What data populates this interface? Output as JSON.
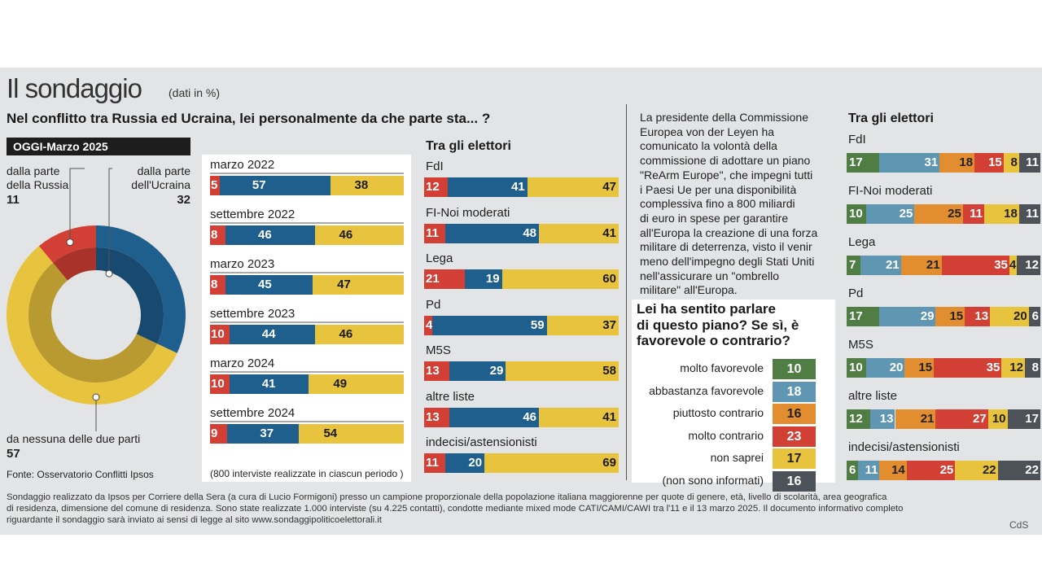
{
  "title": "Il sondaggio",
  "unit_note": "(dati in %)",
  "question": "Nel conflitto tra Russia ed Ucraina, lei personalmente  da che parte sta... ?",
  "today_label": "OGGI-Marzo 2025",
  "source": "Fonte: Osservatorio Conflitti Ipsos",
  "interviews_note": "(800 interviste realizzate in ciascun periodo )",
  "colors": {
    "russia": "#d13f35",
    "ukraine": "#1f5f8e",
    "neither": "#e8c33e",
    "green": "#4f7d44",
    "lightblue": "#5f97b3",
    "orange": "#e28d2f",
    "red": "#d13f35",
    "yellow": "#e8c33e",
    "gray": "#4c5258"
  },
  "donut": {
    "russia": {
      "label1": "dalla parte",
      "label2": "della Russia",
      "value": "11"
    },
    "ukraine": {
      "label1": "dalla parte",
      "label2": "dell'Ucraina",
      "value": "32"
    },
    "neither": {
      "label": "da nessuna delle due parti",
      "value": "57"
    }
  },
  "chart_data": [
    {
      "type": "pie",
      "title": "OGGI-Marzo 2025",
      "categories": [
        "dalla parte della Russia",
        "dalla parte dell'Ucraina",
        "da nessuna delle due parti"
      ],
      "values": [
        11,
        32,
        57
      ]
    },
    {
      "type": "bar",
      "stacked": true,
      "categories": [
        "marzo 2022",
        "settembre 2022",
        "marzo 2023",
        "settembre 2023",
        "marzo 2024",
        "settembre 2024"
      ],
      "series": [
        {
          "values": [
            5,
            8,
            8,
            10,
            10,
            9
          ]
        },
        {
          "values": [
            57,
            46,
            45,
            44,
            41,
            37
          ]
        },
        {
          "values": [
            38,
            46,
            47,
            46,
            49,
            54
          ]
        }
      ]
    },
    {
      "type": "bar",
      "stacked": true,
      "title": "Tra gli elettori",
      "categories": [
        "FdI",
        "FI-Noi moderati",
        "Lega",
        "Pd",
        "M5S",
        "altre liste",
        "indecisi/astensionisti"
      ],
      "series": [
        {
          "values": [
            12,
            11,
            21,
            4,
            13,
            13,
            11
          ]
        },
        {
          "values": [
            41,
            48,
            19,
            59,
            29,
            46,
            20
          ]
        },
        {
          "values": [
            47,
            41,
            60,
            37,
            58,
            41,
            69
          ]
        }
      ]
    },
    {
      "type": "bar",
      "title": "Lei ha sentito parlare di questo piano? Se sì, è favorevole o contrario?",
      "categories": [
        "molto favorevole",
        "abbastanza favorevole",
        "piuttosto contrario",
        "molto contrario",
        "non saprei",
        "(non sono informati)"
      ],
      "values": [
        10,
        18,
        16,
        23,
        17,
        16
      ]
    },
    {
      "type": "bar",
      "stacked": true,
      "title": "Tra gli elettori",
      "categories": [
        "FdI",
        "FI-Noi moderati",
        "Lega",
        "Pd",
        "M5S",
        "altre liste",
        "indecisi/astensionisti"
      ],
      "series": [
        {
          "values": [
            17,
            10,
            7,
            17,
            10,
            12,
            6
          ]
        },
        {
          "values": [
            31,
            25,
            21,
            29,
            20,
            13,
            11
          ]
        },
        {
          "values": [
            18,
            25,
            21,
            15,
            15,
            21,
            14
          ]
        },
        {
          "values": [
            15,
            11,
            35,
            13,
            35,
            27,
            25
          ]
        },
        {
          "values": [
            8,
            18,
            4,
            20,
            12,
            10,
            22
          ]
        },
        {
          "values": [
            11,
            11,
            12,
            6,
            8,
            17,
            22
          ]
        }
      ]
    }
  ],
  "trend": {
    "periods": [
      {
        "label": "marzo 2022",
        "r": "5",
        "u": "57",
        "n": "38"
      },
      {
        "label": "settembre 2022",
        "r": "8",
        "u": "46",
        "n": "46"
      },
      {
        "label": "marzo 2023",
        "r": "8",
        "u": "45",
        "n": "47"
      },
      {
        "label": "settembre 2023",
        "r": "10",
        "u": "44",
        "n": "46"
      },
      {
        "label": "marzo 2024",
        "r": "10",
        "u": "41",
        "n": "49"
      },
      {
        "label": "settembre 2024",
        "r": "9",
        "u": "37",
        "n": "54"
      }
    ]
  },
  "voters1": {
    "header": "Tra gli elettori",
    "rows": [
      {
        "label": "FdI",
        "r": "12",
        "u": "41",
        "n": "47"
      },
      {
        "label": "FI-Noi moderati",
        "r": "11",
        "u": "48",
        "n": "41"
      },
      {
        "label": "Lega",
        "r": "21",
        "u": "19",
        "n": "60"
      },
      {
        "label": "Pd",
        "r": "4",
        "u": "59",
        "n": "37"
      },
      {
        "label": "M5S",
        "r": "13",
        "u": "29",
        "n": "58"
      },
      {
        "label": "altre liste",
        "r": "13",
        "u": "46",
        "n": "41"
      },
      {
        "label": "indecisi/astensionisti",
        "r": "11",
        "u": "20",
        "n": "69"
      }
    ]
  },
  "rearm_text": "La presidente della Commissione Europea von der Leyen ha comunicato la volontà della commissione di adottare un piano \"ReArm Europe\", che impegni tutti i Paesi Ue per una disponibilità complessiva fino  a 800 miliardi di euro in spese per garantire all'Europa la creazione di una forza militare di deterrenza, visto il venir meno dell'impegno degli Stati Uniti nell'assicurare un \"ombrello militare\" all'Europa.",
  "plan_question": "Lei ha sentito parlare di questo piano? Se sì, è favorevole o contrario?",
  "plan_question_lines": [
    "Lei ha sentito parlare",
    "di questo piano? Se sì, è",
    "favorevole o contrario?"
  ],
  "rearm_lines": [
    "La presidente della Commissione",
    "Europea von der Leyen ha",
    "comunicato la volontà della",
    "commissione di adottare un piano",
    "\"ReArm Europe\", che impegni tutti",
    "i Paesi Ue per una disponibilità",
    "complessiva fino  a 800 miliardi",
    "di euro in spese per garantire",
    "all'Europa la creazione di una forza",
    "militare di deterrenza, visto il venir",
    "meno dell'impegno degli Stati Uniti",
    "nell'assicurare un \"ombrello",
    "militare\" all'Europa."
  ],
  "plan": [
    {
      "label": "molto favorevole",
      "value": "10"
    },
    {
      "label": "abbastanza favorevole",
      "value": "18"
    },
    {
      "label": "piuttosto contrario",
      "value": "16"
    },
    {
      "label": "molto contrario",
      "value": "23"
    },
    {
      "label": "non saprei",
      "value": "17"
    },
    {
      "label": "(non sono informati)",
      "value": "16"
    }
  ],
  "voters2": {
    "header": "Tra gli elettori",
    "rows": [
      {
        "label": "FdI",
        "v": [
          "17",
          "31",
          "18",
          "15",
          "8",
          "11"
        ]
      },
      {
        "label": "FI-Noi moderati",
        "v": [
          "10",
          "25",
          "25",
          "11",
          "18",
          "11"
        ]
      },
      {
        "label": "Lega",
        "v": [
          "7",
          "21",
          "21",
          "35",
          "4",
          "12"
        ]
      },
      {
        "label": "Pd",
        "v": [
          "17",
          "29",
          "15",
          "13",
          "20",
          "6"
        ]
      },
      {
        "label": "M5S",
        "v": [
          "10",
          "20",
          "15",
          "35",
          "12",
          "8"
        ]
      },
      {
        "label": "altre liste",
        "v": [
          "12",
          "13",
          "21",
          "27",
          "10",
          "17"
        ]
      },
      {
        "label": "indecisi/astensionisti",
        "v": [
          "6",
          "11",
          "14",
          "25",
          "22",
          "22"
        ]
      }
    ]
  },
  "footnote_lines": [
    "Sondaggio realizzato da Ipsos per Corriere della Sera (a cura di Lucio Formigoni) presso un campione proporzionale della popolazione italiana maggiorenne per quote di genere, età, livello di scolarità, area geografica",
    "di residenza, dimensione del comune di residenza. Sono state realizzate 1.000 interviste (su 4.225 contatti), condotte mediante mixed mode CATI/CAMI/CAWI tra l'11 e il 13 marzo 2025. Il documento informativo completo",
    "riguardante il sondaggio sarà inviato ai sensi di legge al sito www.sondaggipoliticoelettorali.it"
  ],
  "credit": "CdS"
}
